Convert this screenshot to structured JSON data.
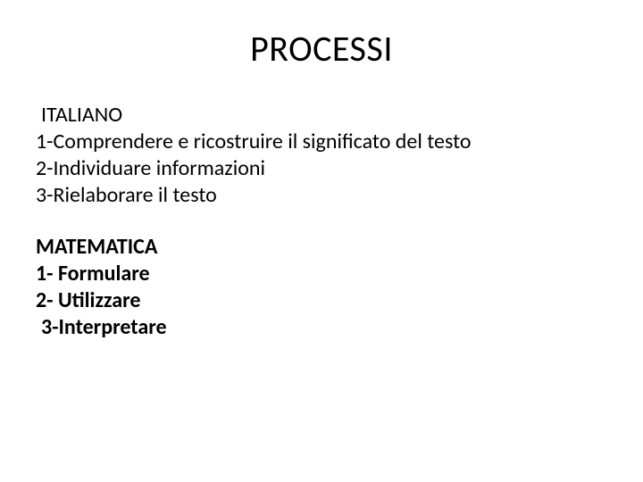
{
  "slide": {
    "title": "PROCESSI",
    "sections": [
      {
        "heading": "ITALIANO",
        "heading_bold": false,
        "items": [
          {
            "text": "1-Comprendere e ricostruire il significato del testo",
            "bold": false,
            "indent": false
          },
          {
            "text": "2-Individuare informazioni",
            "bold": false,
            "indent": false
          },
          {
            "text": "3-Rielaborare il testo",
            "bold": false,
            "indent": false
          }
        ]
      },
      {
        "heading": "MATEMATICA",
        "heading_bold": true,
        "items": [
          {
            "text": "1- Formulare",
            "bold": true,
            "indent": false
          },
          {
            "text": "2- Utilizzare",
            "bold": true,
            "indent": false
          },
          {
            "text": "3-Interpretare",
            "bold": true,
            "indent": true
          }
        ]
      }
    ]
  },
  "colors": {
    "background": "#ffffff",
    "text": "#000000"
  },
  "typography": {
    "title_fontsize": 40,
    "body_fontsize": 24,
    "font_family": "Calibri"
  }
}
